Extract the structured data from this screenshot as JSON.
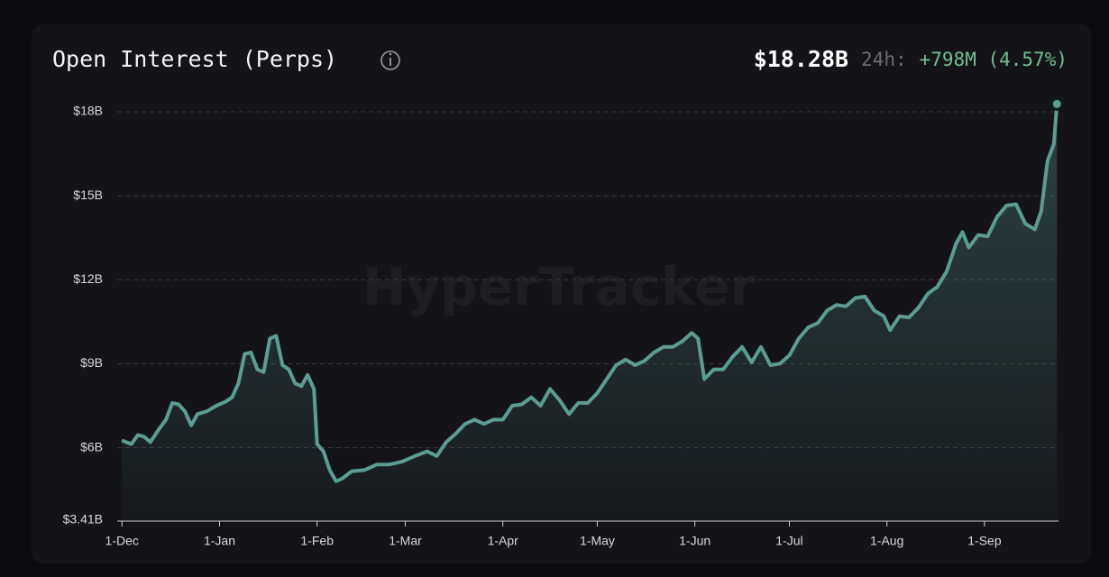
{
  "chart_data": {
    "type": "area",
    "title": "Open Interest (Perps)",
    "current_value": "$18.28B",
    "change_label": "24h:",
    "change": "+798M (4.57%)",
    "watermark": "HyperTracker",
    "color": "#5b9c93",
    "grid": true,
    "xlim": [
      -1.5,
      297.5
    ],
    "ylim": [
      3.41,
      18.5
    ],
    "xticks": [
      {
        "value": 0,
        "label": "1-Dec"
      },
      {
        "value": 31,
        "label": "1-Jan"
      },
      {
        "value": 62,
        "label": "1-Feb"
      },
      {
        "value": 90,
        "label": "1-Mar"
      },
      {
        "value": 121,
        "label": "1-Apr"
      },
      {
        "value": 151,
        "label": "1-May"
      },
      {
        "value": 182,
        "label": "1-Jun"
      },
      {
        "value": 212,
        "label": "1-Jul"
      },
      {
        "value": 243,
        "label": "1-Aug"
      },
      {
        "value": 274,
        "label": "1-Sep"
      }
    ],
    "yticks": [
      {
        "value": 3.41,
        "label": "$3.41B"
      },
      {
        "value": 6,
        "label": "$6B"
      },
      {
        "value": 9,
        "label": "$9B"
      },
      {
        "value": 12,
        "label": "$12B"
      },
      {
        "value": 15,
        "label": "$15B"
      },
      {
        "value": 18,
        "label": "$18B"
      }
    ],
    "x": [
      0,
      3,
      5,
      7,
      9,
      12,
      14,
      16,
      18,
      20,
      22,
      24,
      27,
      30,
      33,
      35,
      37,
      39,
      41,
      43,
      45,
      47,
      49,
      51,
      53,
      55,
      57,
      59,
      61,
      62,
      64,
      66,
      68,
      70,
      73,
      77,
      81,
      85,
      89,
      93,
      97,
      100,
      103,
      106,
      109,
      112,
      115,
      118,
      121,
      124,
      127,
      130,
      133,
      136,
      139,
      142,
      145,
      148,
      151,
      154,
      157,
      160,
      163,
      166,
      169,
      172,
      175,
      178,
      181,
      183,
      185,
      188,
      191,
      194,
      197,
      200,
      203,
      206,
      209,
      212,
      215,
      218,
      221,
      224,
      227,
      230,
      233,
      236,
      239,
      242,
      244,
      247,
      250,
      253,
      256,
      259,
      262,
      265,
      267,
      269,
      272,
      275,
      278,
      281,
      284,
      287,
      290,
      292,
      294,
      296,
      297
    ],
    "values": [
      6.26,
      6.13,
      6.45,
      6.4,
      6.2,
      6.7,
      7.0,
      7.6,
      7.55,
      7.3,
      6.8,
      7.2,
      7.3,
      7.5,
      7.65,
      7.8,
      8.3,
      9.35,
      9.4,
      8.8,
      8.7,
      9.9,
      10.0,
      8.95,
      8.8,
      8.3,
      8.2,
      8.6,
      8.1,
      6.13,
      5.87,
      5.2,
      4.8,
      4.9,
      5.16,
      5.2,
      5.4,
      5.4,
      5.5,
      5.7,
      5.87,
      5.7,
      6.2,
      6.5,
      6.85,
      7.0,
      6.85,
      7.0,
      7.0,
      7.5,
      7.55,
      7.8,
      7.5,
      8.1,
      7.7,
      7.2,
      7.6,
      7.6,
      7.95,
      8.45,
      8.95,
      9.15,
      8.95,
      9.1,
      9.4,
      9.6,
      9.6,
      9.8,
      10.1,
      9.9,
      8.45,
      8.8,
      8.8,
      9.25,
      9.6,
      9.05,
      9.6,
      8.95,
      9.0,
      9.3,
      9.9,
      10.3,
      10.45,
      10.9,
      11.1,
      11.05,
      11.35,
      11.4,
      10.9,
      10.7,
      10.2,
      10.7,
      10.65,
      11.0,
      11.5,
      11.75,
      12.3,
      13.3,
      13.7,
      13.15,
      13.6,
      13.55,
      14.25,
      14.65,
      14.7,
      14.0,
      13.8,
      14.45,
      16.25,
      16.85,
      18.28
    ]
  }
}
